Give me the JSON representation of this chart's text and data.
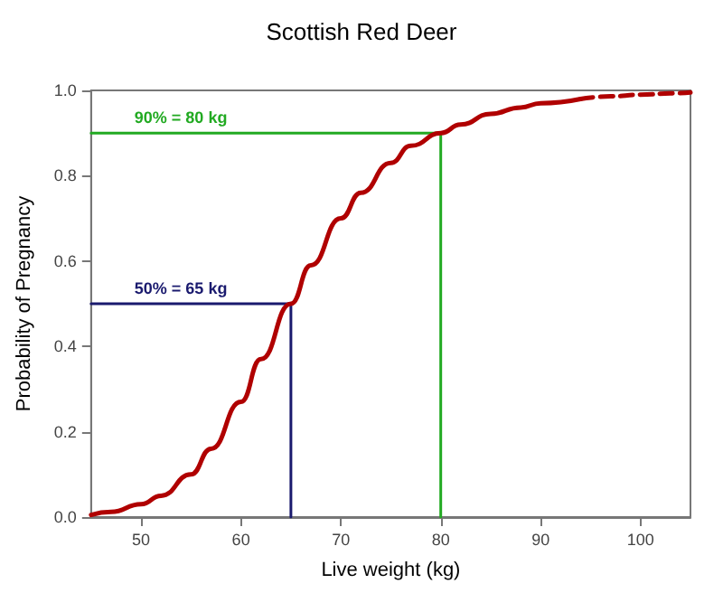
{
  "chart_data": {
    "type": "line",
    "title": "Scottish Red Deer",
    "xlabel": "Live weight (kg)",
    "ylabel": "Probability of Pregnancy",
    "xlim": [
      45,
      105
    ],
    "xticks": [
      50,
      60,
      70,
      80,
      90,
      100
    ],
    "ylim": [
      0,
      1
    ],
    "yticks": [
      {
        "value": 0,
        "label": "0.0"
      },
      {
        "value": 0.2,
        "label": "0.2"
      },
      {
        "value": 0.4,
        "label": "0.4"
      },
      {
        "value": 0.6,
        "label": "0.6"
      },
      {
        "value": 0.8,
        "label": "0.8"
      },
      {
        "value": 1,
        "label": "1.0"
      }
    ],
    "grid": false,
    "marker": "none",
    "series": [
      {
        "color": "#b00000",
        "line_style": "solid",
        "x": [
          45,
          47,
          50,
          52,
          55,
          57,
          60,
          62,
          65,
          67,
          70,
          72,
          75,
          77,
          80,
          82,
          85,
          88,
          90,
          94
        ],
        "values": [
          0.005,
          0.012,
          0.03,
          0.05,
          0.1,
          0.16,
          0.27,
          0.37,
          0.5,
          0.59,
          0.7,
          0.76,
          0.83,
          0.87,
          0.9,
          0.92,
          0.945,
          0.96,
          0.97,
          0.98
        ]
      },
      {
        "color": "#b00000",
        "line_style": "dashed",
        "x": [
          94,
          97,
          100,
          103,
          105
        ],
        "values": [
          0.98,
          0.986,
          0.99,
          0.993,
          0.995
        ]
      },
      {
        "color": "#22aa22",
        "line_style": "solid",
        "x": [
          45,
          80,
          80
        ],
        "values": [
          0.9,
          0.9,
          0
        ]
      },
      {
        "color": "#1a1a6e",
        "line_style": "solid",
        "x": [
          45,
          65,
          65
        ],
        "values": [
          0.5,
          0.5,
          0
        ]
      }
    ],
    "annotations": [
      "90% = 80 kg",
      "50% = 65 kg"
    ]
  }
}
